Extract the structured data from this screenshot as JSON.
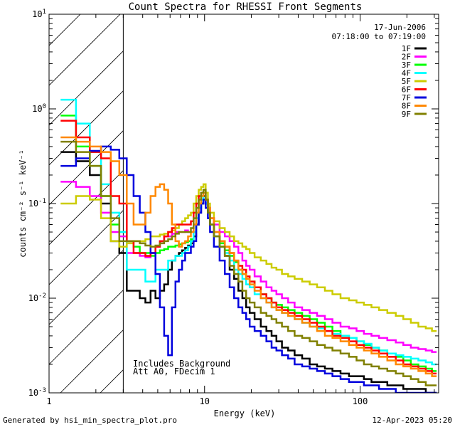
{
  "chart_data": {
    "type": "line",
    "style": "histogram-steps",
    "title": "Count Spectra for RHESSI Front Segments",
    "xlabel": "Energy (keV)",
    "ylabel": "counts cm⁻² s⁻¹ keV⁻¹",
    "xscale": "log",
    "yscale": "log",
    "xlim": [
      1,
      320
    ],
    "ylim": [
      0.001,
      10
    ],
    "x_ticks": [
      {
        "value": 1,
        "label": "1"
      },
      {
        "value": 10,
        "label": "10"
      },
      {
        "value": 100,
        "label": "100"
      }
    ],
    "y_ticks": [
      {
        "value": 0.001,
        "base": "10",
        "exp": "-3"
      },
      {
        "value": 0.01,
        "base": "10",
        "exp": "-2"
      },
      {
        "value": 0.1,
        "base": "10",
        "exp": "-1"
      },
      {
        "value": 1,
        "base": "10",
        "exp": "0"
      },
      {
        "value": 10,
        "base": "10",
        "exp": "1"
      }
    ],
    "shaded_region": {
      "xmin": 1,
      "xmax": 3,
      "pattern": "diagonal hatch"
    },
    "legend_title": [
      "17-Jun-2006",
      "07:18:00 to 07:19:00"
    ],
    "legend_position": "top-right",
    "annotations": [
      "Includes Background",
      "Att A0, FDecim 1"
    ],
    "energy_bins_keV": [
      1.33,
      1.67,
      2.0,
      2.33,
      2.67,
      3.0,
      3.33,
      3.67,
      4.0,
      4.33,
      4.67,
      5.0,
      5.33,
      5.67,
      6.0,
      6.33,
      6.67,
      7.0,
      7.33,
      7.67,
      8.0,
      8.33,
      8.67,
      9.0,
      9.33,
      9.67,
      10.0,
      10.33,
      10.67,
      11.0,
      12.0,
      13.0,
      14.0,
      15.0,
      16.0,
      17.0,
      18.0,
      19.0,
      20.0,
      22.0,
      24.0,
      26.0,
      28.0,
      30.0,
      33.0,
      36.0,
      40.0,
      45.0,
      50.0,
      56.0,
      63.0,
      70.0,
      80.0,
      90.0,
      100.0,
      112.0,
      125.0,
      140.0,
      160.0,
      180.0,
      200.0,
      225.0,
      250.0,
      280.0,
      300.0
    ],
    "series": [
      {
        "name": "1F",
        "color": "#000000",
        "values": [
          0.35,
          0.28,
          0.2,
          0.1,
          0.04,
          0.03,
          0.012,
          0.012,
          0.01,
          0.009,
          0.012,
          0.01,
          0.012,
          0.014,
          0.02,
          0.025,
          0.028,
          0.03,
          0.032,
          0.034,
          0.036,
          0.038,
          0.045,
          0.06,
          0.08,
          0.1,
          0.12,
          0.1,
          0.08,
          0.06,
          0.045,
          0.035,
          0.028,
          0.02,
          0.016,
          0.012,
          0.01,
          0.008,
          0.007,
          0.006,
          0.005,
          0.0045,
          0.004,
          0.0035,
          0.003,
          0.0028,
          0.0025,
          0.0023,
          0.002,
          0.0019,
          0.0018,
          0.0017,
          0.0016,
          0.0015,
          0.0015,
          0.0014,
          0.0013,
          0.0013,
          0.0012,
          0.0012,
          0.0011,
          0.0011,
          0.0011,
          0.001,
          0.001
        ]
      },
      {
        "name": "2F",
        "color": "#ff00ff",
        "values": [
          0.17,
          0.15,
          0.12,
          0.08,
          0.05,
          0.045,
          0.03,
          0.03,
          0.028,
          0.027,
          0.03,
          0.035,
          0.04,
          0.045,
          0.045,
          0.048,
          0.05,
          0.05,
          0.05,
          0.052,
          0.05,
          0.05,
          0.06,
          0.07,
          0.09,
          0.11,
          0.13,
          0.11,
          0.09,
          0.07,
          0.06,
          0.05,
          0.045,
          0.04,
          0.035,
          0.03,
          0.025,
          0.022,
          0.02,
          0.017,
          0.015,
          0.013,
          0.012,
          0.011,
          0.01,
          0.009,
          0.008,
          0.0075,
          0.007,
          0.0065,
          0.006,
          0.0055,
          0.005,
          0.0048,
          0.0045,
          0.0042,
          0.004,
          0.0038,
          0.0036,
          0.0034,
          0.0032,
          0.003,
          0.0029,
          0.0028,
          0.0027
        ]
      },
      {
        "name": "3F",
        "color": "#00ff00",
        "values": [
          0.85,
          0.4,
          0.25,
          0.12,
          0.06,
          0.05,
          0.04,
          0.035,
          0.03,
          0.03,
          0.028,
          0.03,
          0.032,
          0.033,
          0.035,
          0.035,
          0.036,
          0.037,
          0.038,
          0.039,
          0.04,
          0.042,
          0.05,
          0.07,
          0.09,
          0.12,
          0.14,
          0.11,
          0.08,
          0.06,
          0.045,
          0.038,
          0.032,
          0.028,
          0.024,
          0.02,
          0.018,
          0.016,
          0.015,
          0.013,
          0.011,
          0.01,
          0.009,
          0.0085,
          0.008,
          0.0075,
          0.007,
          0.0065,
          0.006,
          0.0055,
          0.005,
          0.0045,
          0.004,
          0.0038,
          0.0035,
          0.0032,
          0.003,
          0.0028,
          0.0026,
          0.0024,
          0.0022,
          0.002,
          0.0019,
          0.0018,
          0.0017
        ]
      },
      {
        "name": "4F",
        "color": "#00ffff",
        "values": [
          1.25,
          0.7,
          0.35,
          0.16,
          0.08,
          0.05,
          0.02,
          0.02,
          0.02,
          0.015,
          0.015,
          0.02,
          0.02,
          0.02,
          0.025,
          0.025,
          0.028,
          0.028,
          0.03,
          0.032,
          0.035,
          0.04,
          0.05,
          0.07,
          0.09,
          0.11,
          0.13,
          0.1,
          0.08,
          0.06,
          0.045,
          0.035,
          0.03,
          0.025,
          0.02,
          0.018,
          0.016,
          0.014,
          0.013,
          0.011,
          0.01,
          0.009,
          0.008,
          0.0075,
          0.007,
          0.0065,
          0.006,
          0.0055,
          0.005,
          0.0048,
          0.0045,
          0.0042,
          0.004,
          0.0038,
          0.0035,
          0.0033,
          0.003,
          0.0028,
          0.0026,
          0.0025,
          0.0024,
          0.0023,
          0.0022,
          0.0021,
          0.002
        ]
      },
      {
        "name": "5F",
        "color": "#cccc00",
        "values": [
          0.1,
          0.12,
          0.11,
          0.07,
          0.04,
          0.035,
          0.038,
          0.04,
          0.04,
          0.042,
          0.045,
          0.045,
          0.047,
          0.048,
          0.05,
          0.052,
          0.055,
          0.06,
          0.065,
          0.07,
          0.075,
          0.08,
          0.1,
          0.12,
          0.14,
          0.15,
          0.16,
          0.13,
          0.1,
          0.08,
          0.065,
          0.055,
          0.05,
          0.045,
          0.04,
          0.038,
          0.035,
          0.033,
          0.03,
          0.027,
          0.025,
          0.023,
          0.021,
          0.02,
          0.018,
          0.017,
          0.016,
          0.015,
          0.014,
          0.013,
          0.012,
          0.011,
          0.01,
          0.0095,
          0.009,
          0.0085,
          0.008,
          0.0075,
          0.007,
          0.0065,
          0.006,
          0.0055,
          0.005,
          0.0048,
          0.0045
        ]
      },
      {
        "name": "6F",
        "color": "#ff0000",
        "values": [
          0.75,
          0.5,
          0.35,
          0.3,
          0.12,
          0.1,
          0.04,
          0.03,
          0.03,
          0.028,
          0.03,
          0.035,
          0.04,
          0.045,
          0.05,
          0.055,
          0.06,
          0.06,
          0.06,
          0.06,
          0.06,
          0.065,
          0.08,
          0.1,
          0.12,
          0.13,
          0.13,
          0.11,
          0.09,
          0.07,
          0.05,
          0.04,
          0.035,
          0.03,
          0.025,
          0.022,
          0.02,
          0.017,
          0.015,
          0.013,
          0.011,
          0.01,
          0.009,
          0.008,
          0.0075,
          0.007,
          0.0065,
          0.006,
          0.0055,
          0.005,
          0.0045,
          0.004,
          0.0038,
          0.0035,
          0.0032,
          0.003,
          0.0028,
          0.0026,
          0.0024,
          0.0022,
          0.002,
          0.0019,
          0.0018,
          0.0017,
          0.0016
        ]
      },
      {
        "name": "7F",
        "color": "#0000dd",
        "values": [
          0.25,
          0.3,
          0.36,
          0.4,
          0.37,
          0.3,
          0.2,
          0.12,
          0.08,
          0.05,
          0.03,
          0.018,
          0.008,
          0.004,
          0.0025,
          0.008,
          0.015,
          0.02,
          0.025,
          0.03,
          0.03,
          0.035,
          0.04,
          0.06,
          0.08,
          0.1,
          0.11,
          0.09,
          0.07,
          0.05,
          0.035,
          0.025,
          0.018,
          0.013,
          0.01,
          0.008,
          0.007,
          0.006,
          0.005,
          0.0045,
          0.004,
          0.0035,
          0.003,
          0.0028,
          0.0025,
          0.0023,
          0.002,
          0.0019,
          0.0018,
          0.0017,
          0.0016,
          0.0015,
          0.0014,
          0.0013,
          0.0013,
          0.0012,
          0.0012,
          0.0011,
          0.0011,
          0.001,
          0.001,
          0.001,
          0.001,
          0.001,
          0.001
        ]
      },
      {
        "name": "8F",
        "color": "#ff8800",
        "values": [
          0.5,
          0.45,
          0.4,
          0.35,
          0.28,
          0.2,
          0.1,
          0.06,
          0.06,
          0.08,
          0.12,
          0.15,
          0.16,
          0.14,
          0.1,
          0.06,
          0.04,
          0.035,
          0.038,
          0.04,
          0.045,
          0.05,
          0.06,
          0.08,
          0.1,
          0.12,
          0.13,
          0.11,
          0.09,
          0.07,
          0.05,
          0.04,
          0.035,
          0.03,
          0.025,
          0.02,
          0.018,
          0.016,
          0.014,
          0.012,
          0.01,
          0.009,
          0.008,
          0.0075,
          0.007,
          0.0065,
          0.006,
          0.0055,
          0.005,
          0.0045,
          0.004,
          0.0038,
          0.0035,
          0.0032,
          0.003,
          0.0028,
          0.0026,
          0.0024,
          0.0022,
          0.002,
          0.0019,
          0.0018,
          0.0017,
          0.0016,
          0.0015
        ]
      },
      {
        "name": "9F",
        "color": "#808000",
        "values": [
          0.45,
          0.35,
          0.25,
          0.12,
          0.07,
          0.04,
          0.04,
          0.04,
          0.038,
          0.036,
          0.035,
          0.036,
          0.038,
          0.04,
          0.042,
          0.045,
          0.048,
          0.05,
          0.05,
          0.05,
          0.05,
          0.055,
          0.07,
          0.09,
          0.11,
          0.13,
          0.14,
          0.11,
          0.08,
          0.06,
          0.045,
          0.035,
          0.028,
          0.022,
          0.018,
          0.015,
          0.012,
          0.01,
          0.009,
          0.008,
          0.007,
          0.0065,
          0.006,
          0.0055,
          0.005,
          0.0045,
          0.004,
          0.0038,
          0.0035,
          0.0032,
          0.003,
          0.0028,
          0.0026,
          0.0024,
          0.0022,
          0.002,
          0.0019,
          0.0018,
          0.0017,
          0.0016,
          0.0015,
          0.0014,
          0.0013,
          0.0012,
          0.0012
        ]
      }
    ]
  },
  "footer": {
    "generated_by": "Generated by hsi_min_spectra_plot.pro",
    "date": "12-Apr-2023 05:20"
  }
}
